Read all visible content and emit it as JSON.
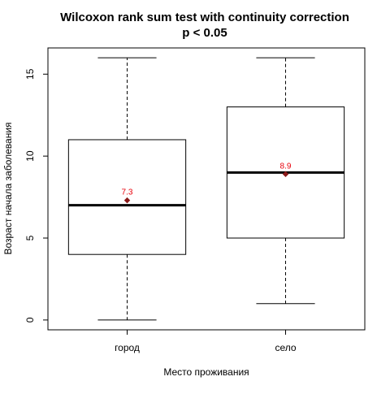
{
  "chart_data": {
    "type": "boxplot",
    "title": "Wilcoxon rank sum test with continuity correction",
    "subtitle": "p < 0.05",
    "xlabel": "Место проживания",
    "ylabel": "Возраст начала заболевания",
    "categories": [
      "город",
      "село"
    ],
    "ylim": [
      -0.6,
      16.6
    ],
    "yticks": [
      0,
      5,
      10,
      15
    ],
    "boxes": [
      {
        "category": "город",
        "min": 0,
        "q1": 4,
        "median": 7,
        "q3": 11,
        "max": 16,
        "mean": 7.3,
        "mean_label": "7.3"
      },
      {
        "category": "село",
        "min": 1,
        "q1": 5,
        "median": 9,
        "q3": 13,
        "max": 16,
        "mean": 8.9,
        "mean_label": "8.9"
      }
    ],
    "mean_marker_color": "#8b1a1a",
    "mean_label_color": "#e8000b",
    "grid": false,
    "legend": "none"
  }
}
